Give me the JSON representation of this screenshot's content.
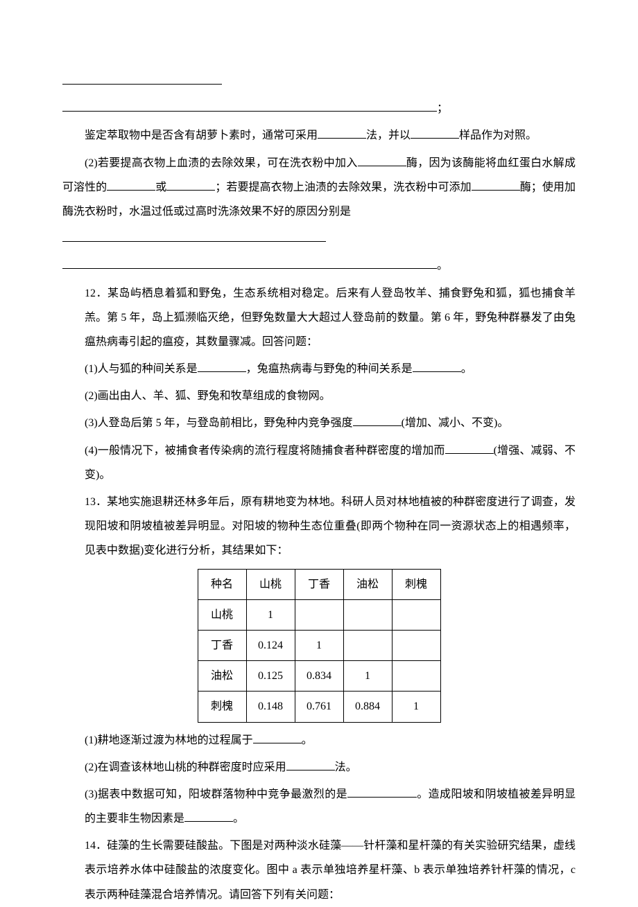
{
  "line_blank1": "",
  "p1": {
    "t1": "鉴定萃取物中是否含有胡萝卜素时，通常可采用",
    "t2": "法，并以",
    "t3": "样品作为对照。"
  },
  "p2": {
    "t1": "(2)若要提高衣物上血渍的去除效果，可在洗衣粉中加入",
    "t2": "酶，因为该酶能将血红蛋白水解成可溶性的",
    "t3": "或",
    "t4": "；若要提高衣物上油渍的去除效果，洗衣粉中可添加",
    "t5": "酶；使用加酶洗衣粉时，水温过低或过高时洗涤效果不好的原因分别是"
  },
  "q12": {
    "intro1": "12．某岛屿栖息着狐和野兔，生态系统相对稳定。后来有人登岛牧羊、捕食野兔和狐，狐也捕食羊羔。第 5 年，岛上狐濒临灭绝，但野兔数量大大超过人登岛前的数量。第 6 年，野兔种群暴发了由兔瘟热病毒引起的瘟疫，其数量骤减。回答问题：",
    "a": "(1)人与狐的种间关系是",
    "a2": "，兔瘟热病毒与野兔的种间关系是",
    "a3": "。",
    "b": "(2)画出由人、羊、狐、野兔和牧草组成的食物网。",
    "c": "(3)人登岛后第 5 年，与登岛前相比，野兔种内竞争强度",
    "c2": "(增加、减小、不变)。",
    "d": "(4)一般情况下，被捕食者传染病的流行程度将随捕食者种群密度的增加而",
    "d2": "(增强、减弱、不变)。"
  },
  "q13": {
    "intro": "13．某地实施退耕还林多年后，原有耕地变为林地。科研人员对林地植被的种群密度进行了调查，发现阳坡和阴坡植被差异明显。对阳坡的物种生态位重叠(即两个物种在同一资源状态上的相遇频率，见表中数据)变化进行分析，其结果如下：",
    "table": {
      "header": [
        "种名",
        "山桃",
        "丁香",
        "油松",
        "刺槐"
      ],
      "rows": [
        [
          "山桃",
          "1",
          "",
          "",
          ""
        ],
        [
          "丁香",
          "0.124",
          "1",
          "",
          ""
        ],
        [
          "油松",
          "0.125",
          "0.834",
          "1",
          ""
        ],
        [
          "刺槐",
          "0.148",
          "0.761",
          "0.884",
          "1"
        ]
      ]
    },
    "a": "(1)耕地逐渐过渡为林地的过程属于",
    "a2": "。",
    "b": "(2)在调查该林地山桃的种群密度时应采用",
    "b2": "法。",
    "c": "(3)据表中数据可知，阳坡群落物种中竞争最激烈的是",
    "c2": "。造成阳坡和阴坡植被差异明显的主要非生物因素是",
    "c3": "。"
  },
  "q14": {
    "intro": "14．硅藻的生长需要硅酸盐。下图是对两种淡水硅藻——针杆藻和星杆藻的有关实验研究结果，虚线表示培养水体中硅酸盐的浓度变化。图中 a 表示单独培养星杆藻、b 表示单独培养针杆藻的情况，c 表示两种硅藻混合培养情况。请回答下列有关问题："
  }
}
